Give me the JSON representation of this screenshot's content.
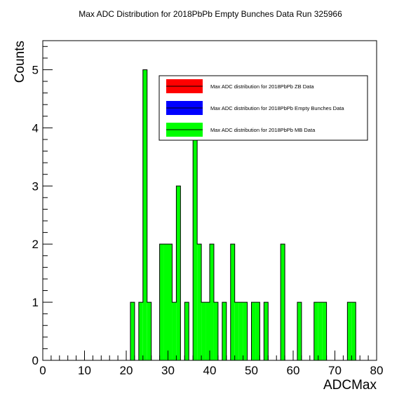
{
  "chart_data": {
    "type": "bar",
    "title": "Max ADC Distribution for 2018PbPb Empty Bunches Data Run 325966",
    "xlabel": "ADCMax",
    "ylabel": "Counts",
    "xlim": [
      0,
      80
    ],
    "ylim": [
      0,
      5.5
    ],
    "bin_width": 1,
    "x_ticks": [
      0,
      10,
      20,
      30,
      40,
      50,
      60,
      70,
      80
    ],
    "y_ticks": [
      0,
      1,
      2,
      3,
      4,
      5
    ],
    "grid": false,
    "legend_position": "top-right",
    "series": [
      {
        "name": "Max ADC distribution for 2018PbPb ZB Data",
        "color": "#ff0000",
        "bins": []
      },
      {
        "name": "Max ADC distribution for 2018PbPb Empty Bunches Data",
        "color": "#0000ff",
        "bins": []
      },
      {
        "name": "Max ADC distribution for 2018PbPb MB Data",
        "color": "#00ff00",
        "bins": [
          {
            "x": 21,
            "y": 1
          },
          {
            "x": 23,
            "y": 1
          },
          {
            "x": 24,
            "y": 5
          },
          {
            "x": 25,
            "y": 1
          },
          {
            "x": 28,
            "y": 2
          },
          {
            "x": 29,
            "y": 2
          },
          {
            "x": 30,
            "y": 2
          },
          {
            "x": 31,
            "y": 1
          },
          {
            "x": 32,
            "y": 3
          },
          {
            "x": 34,
            "y": 1
          },
          {
            "x": 36,
            "y": 4
          },
          {
            "x": 37,
            "y": 2
          },
          {
            "x": 38,
            "y": 1
          },
          {
            "x": 39,
            "y": 1
          },
          {
            "x": 40,
            "y": 2
          },
          {
            "x": 41,
            "y": 1
          },
          {
            "x": 43,
            "y": 1
          },
          {
            "x": 45,
            "y": 2
          },
          {
            "x": 46,
            "y": 1
          },
          {
            "x": 47,
            "y": 1
          },
          {
            "x": 48,
            "y": 1
          },
          {
            "x": 50,
            "y": 1
          },
          {
            "x": 51,
            "y": 1
          },
          {
            "x": 53,
            "y": 1
          },
          {
            "x": 57,
            "y": 2
          },
          {
            "x": 61,
            "y": 1
          },
          {
            "x": 65,
            "y": 1
          },
          {
            "x": 66,
            "y": 1
          },
          {
            "x": 67,
            "y": 1
          },
          {
            "x": 73,
            "y": 1
          },
          {
            "x": 74,
            "y": 1
          }
        ]
      }
    ]
  }
}
